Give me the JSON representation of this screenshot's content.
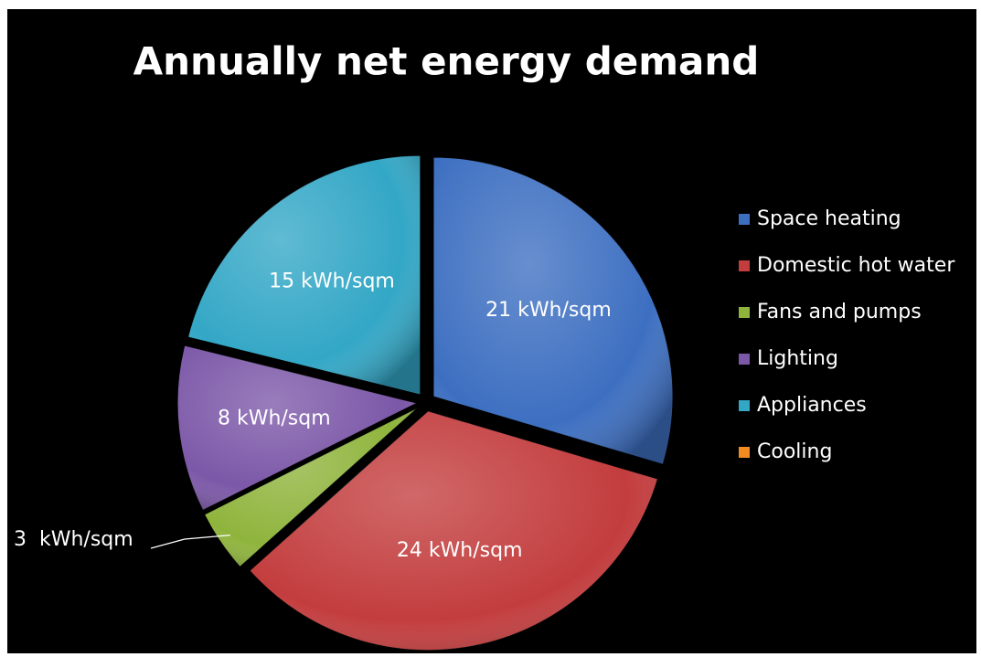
{
  "chart_data": {
    "type": "pie",
    "title": "Annually net energy demand",
    "categories": [
      "Space heating",
      "Domestic hot water",
      "Fans and pumps",
      "Lighting",
      "Appliances",
      "Cooling"
    ],
    "values": [
      21,
      24,
      3,
      8,
      15,
      0
    ],
    "value_labels": [
      "21 kWh/sqm",
      "24 kWh/sqm",
      "3  kWh/sqm",
      "8 kWh/sqm",
      "15 kWh/sqm",
      null
    ],
    "colors": [
      "#3d6fc1",
      "#c33d3e",
      "#8fb43c",
      "#7c58a8",
      "#33a7c6",
      "#f28c20"
    ],
    "legend": "right"
  }
}
